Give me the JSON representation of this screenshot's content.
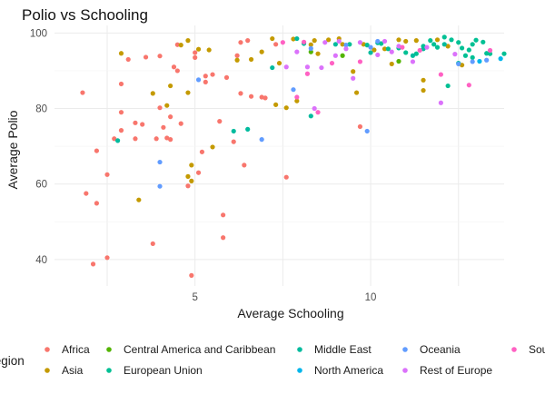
{
  "chart_data": {
    "type": "scatter",
    "title": "Polio vs Schooling",
    "xlabel": "Average Schooling",
    "ylabel": "Average Polio",
    "xlim": [
      1.0,
      13.8
    ],
    "ylim": [
      33,
      102
    ],
    "xticks": [
      5,
      10
    ],
    "yticks": [
      40,
      60,
      80,
      100
    ],
    "grid": true,
    "legend": {
      "title": "Region",
      "position": "bottom"
    },
    "series": [
      {
        "name": "Africa",
        "color": "#F8766D",
        "points": [
          [
            1.8,
            84.2
          ],
          [
            1.9,
            57.5
          ],
          [
            2.1,
            38.8
          ],
          [
            2.2,
            54.9
          ],
          [
            2.2,
            68.8
          ],
          [
            2.5,
            40.5
          ],
          [
            2.5,
            62.5
          ],
          [
            2.7,
            72.0
          ],
          [
            2.9,
            86.5
          ],
          [
            2.9,
            79.0
          ],
          [
            2.9,
            74.2
          ],
          [
            3.1,
            93.0
          ],
          [
            3.3,
            76.2
          ],
          [
            3.3,
            72.0
          ],
          [
            3.5,
            75.8
          ],
          [
            3.6,
            93.6
          ],
          [
            3.8,
            44.2
          ],
          [
            3.9,
            72.0
          ],
          [
            4.0,
            80.2
          ],
          [
            4.0,
            93.9
          ],
          [
            4.1,
            75.0
          ],
          [
            4.2,
            72.2
          ],
          [
            4.3,
            77.8
          ],
          [
            4.3,
            71.8
          ],
          [
            4.5,
            96.9
          ],
          [
            4.4,
            91.0
          ],
          [
            4.5,
            90.0
          ],
          [
            4.6,
            76.0
          ],
          [
            4.8,
            59.5
          ],
          [
            4.9,
            35.8
          ],
          [
            5.0,
            94.8
          ],
          [
            5.0,
            93.5
          ],
          [
            5.2,
            68.5
          ],
          [
            5.1,
            63.0
          ],
          [
            5.3,
            88.6
          ],
          [
            5.3,
            87.0
          ],
          [
            5.5,
            89.0
          ],
          [
            5.7,
            76.6
          ],
          [
            5.8,
            51.8
          ],
          [
            5.8,
            45.8
          ],
          [
            5.9,
            88.2
          ],
          [
            6.1,
            71.2
          ],
          [
            6.2,
            94.0
          ],
          [
            6.3,
            97.5
          ],
          [
            6.3,
            84.0
          ],
          [
            6.4,
            65.0
          ],
          [
            6.5,
            98.0
          ],
          [
            6.6,
            83.2
          ],
          [
            6.9,
            83.0
          ],
          [
            7.0,
            82.8
          ],
          [
            7.3,
            97.0
          ],
          [
            7.6,
            61.8
          ],
          [
            9.7,
            75.2
          ]
        ]
      },
      {
        "name": "Asia",
        "color": "#C49A00",
        "points": [
          [
            2.9,
            94.6
          ],
          [
            3.4,
            55.8
          ],
          [
            3.8,
            84.0
          ],
          [
            4.2,
            80.8
          ],
          [
            4.3,
            86.0
          ],
          [
            4.6,
            96.8
          ],
          [
            4.8,
            98.0
          ],
          [
            4.8,
            62.0
          ],
          [
            4.9,
            60.8
          ],
          [
            4.9,
            65.0
          ],
          [
            4.8,
            84.2
          ],
          [
            5.1,
            95.7
          ],
          [
            5.4,
            95.5
          ],
          [
            5.5,
            69.8
          ],
          [
            6.2,
            92.8
          ],
          [
            6.6,
            93.0
          ],
          [
            6.9,
            95.0
          ],
          [
            7.2,
            98.5
          ],
          [
            7.3,
            81.0
          ],
          [
            7.4,
            92.0
          ],
          [
            7.6,
            80.2
          ],
          [
            7.8,
            98.4
          ],
          [
            7.9,
            82.0
          ],
          [
            8.3,
            96.9
          ],
          [
            8.4,
            98.0
          ],
          [
            8.5,
            94.5
          ],
          [
            8.8,
            98.2
          ],
          [
            9.1,
            98.5
          ],
          [
            9.2,
            97.0
          ],
          [
            9.5,
            89.8
          ],
          [
            9.6,
            84.2
          ],
          [
            9.8,
            97.0
          ],
          [
            10.1,
            95.5
          ],
          [
            10.4,
            95.8
          ],
          [
            10.6,
            91.8
          ],
          [
            10.8,
            98.2
          ],
          [
            11.0,
            97.8
          ],
          [
            11.3,
            98.0
          ],
          [
            11.5,
            84.8
          ],
          [
            11.5,
            87.5
          ],
          [
            11.9,
            98.2
          ],
          [
            12.2,
            96.5
          ],
          [
            12.6,
            91.5
          ]
        ]
      },
      {
        "name": "Central America and Caribbean",
        "color": "#53B400",
        "points": [
          [
            8.3,
            95.0
          ],
          [
            9.2,
            94.0
          ],
          [
            10.8,
            92.5
          ]
        ]
      },
      {
        "name": "European Union",
        "color": "#00C094",
        "points": [
          [
            9.4,
            97.0
          ],
          [
            9.9,
            96.8
          ],
          [
            10.3,
            97.2
          ],
          [
            10.5,
            95.8
          ],
          [
            10.8,
            96.0
          ],
          [
            11.0,
            94.8
          ],
          [
            11.3,
            94.5
          ],
          [
            11.5,
            96.5
          ],
          [
            11.7,
            98.0
          ],
          [
            11.8,
            97.0
          ],
          [
            11.9,
            96.2
          ],
          [
            12.1,
            98.9
          ],
          [
            12.3,
            98.2
          ],
          [
            12.5,
            97.5
          ],
          [
            12.6,
            96.0
          ],
          [
            12.7,
            94.0
          ],
          [
            12.8,
            95.5
          ],
          [
            12.9,
            97.0
          ],
          [
            13.0,
            98.1
          ],
          [
            13.2,
            97.6
          ],
          [
            13.3,
            94.6
          ],
          [
            13.4,
            94.5
          ],
          [
            13.8,
            94.5
          ],
          [
            12.2,
            86.0
          ],
          [
            12.5,
            92.0
          ],
          [
            12.9,
            93.5
          ]
        ]
      },
      {
        "name": "Middle East",
        "color": "#00BB9E",
        "points": [
          [
            2.8,
            71.5
          ],
          [
            6.1,
            74.0
          ],
          [
            6.5,
            74.5
          ],
          [
            7.2,
            90.8
          ],
          [
            7.9,
            98.5
          ],
          [
            8.1,
            97.2
          ],
          [
            8.3,
            78.0
          ],
          [
            9.0,
            97.0
          ],
          [
            10.0,
            94.8
          ],
          [
            10.2,
            97.4
          ],
          [
            11.2,
            94.0
          ],
          [
            11.5,
            95.8
          ],
          [
            12.1,
            97.0
          ]
        ]
      },
      {
        "name": "North America",
        "color": "#00B6EB",
        "points": [
          [
            13.1,
            92.5
          ],
          [
            13.7,
            93.2
          ]
        ]
      },
      {
        "name": "Oceania",
        "color": "#619CFF",
        "points": [
          [
            4.0,
            65.8
          ],
          [
            4.0,
            59.4
          ],
          [
            5.1,
            87.6
          ],
          [
            6.9,
            71.8
          ],
          [
            7.8,
            85.0
          ],
          [
            8.3,
            95.9
          ],
          [
            9.3,
            96.8
          ],
          [
            9.9,
            74.0
          ],
          [
            10.0,
            96.2
          ],
          [
            10.2,
            97.8
          ],
          [
            12.5,
            91.8
          ],
          [
            12.9,
            92.4
          ],
          [
            13.3,
            92.8
          ]
        ]
      },
      {
        "name": "Rest of Europe",
        "color": "#DB72FB",
        "points": [
          [
            7.6,
            91.0
          ],
          [
            7.9,
            95.0
          ],
          [
            8.2,
            91.0
          ],
          [
            8.4,
            80.0
          ],
          [
            8.6,
            90.8
          ],
          [
            8.7,
            97.5
          ],
          [
            9.0,
            94.0
          ],
          [
            9.1,
            97.8
          ],
          [
            9.3,
            95.8
          ],
          [
            9.5,
            88.0
          ],
          [
            9.7,
            97.5
          ],
          [
            10.2,
            94.2
          ],
          [
            10.4,
            97.8
          ],
          [
            10.6,
            95.0
          ],
          [
            10.8,
            96.5
          ],
          [
            11.2,
            92.4
          ],
          [
            11.6,
            96.2
          ],
          [
            12.0,
            81.5
          ],
          [
            12.4,
            94.4
          ]
        ]
      },
      {
        "name": "South America",
        "color": "#FF61C3",
        "points": [
          [
            7.5,
            97.5
          ],
          [
            7.9,
            83.0
          ],
          [
            8.1,
            97.6
          ],
          [
            8.2,
            89.2
          ],
          [
            8.5,
            79.0
          ],
          [
            8.9,
            92.0
          ],
          [
            9.7,
            92.4
          ],
          [
            10.9,
            96.2
          ],
          [
            11.4,
            95.4
          ],
          [
            12.0,
            89.0
          ],
          [
            12.8,
            86.2
          ],
          [
            13.4,
            95.4
          ]
        ]
      }
    ]
  }
}
